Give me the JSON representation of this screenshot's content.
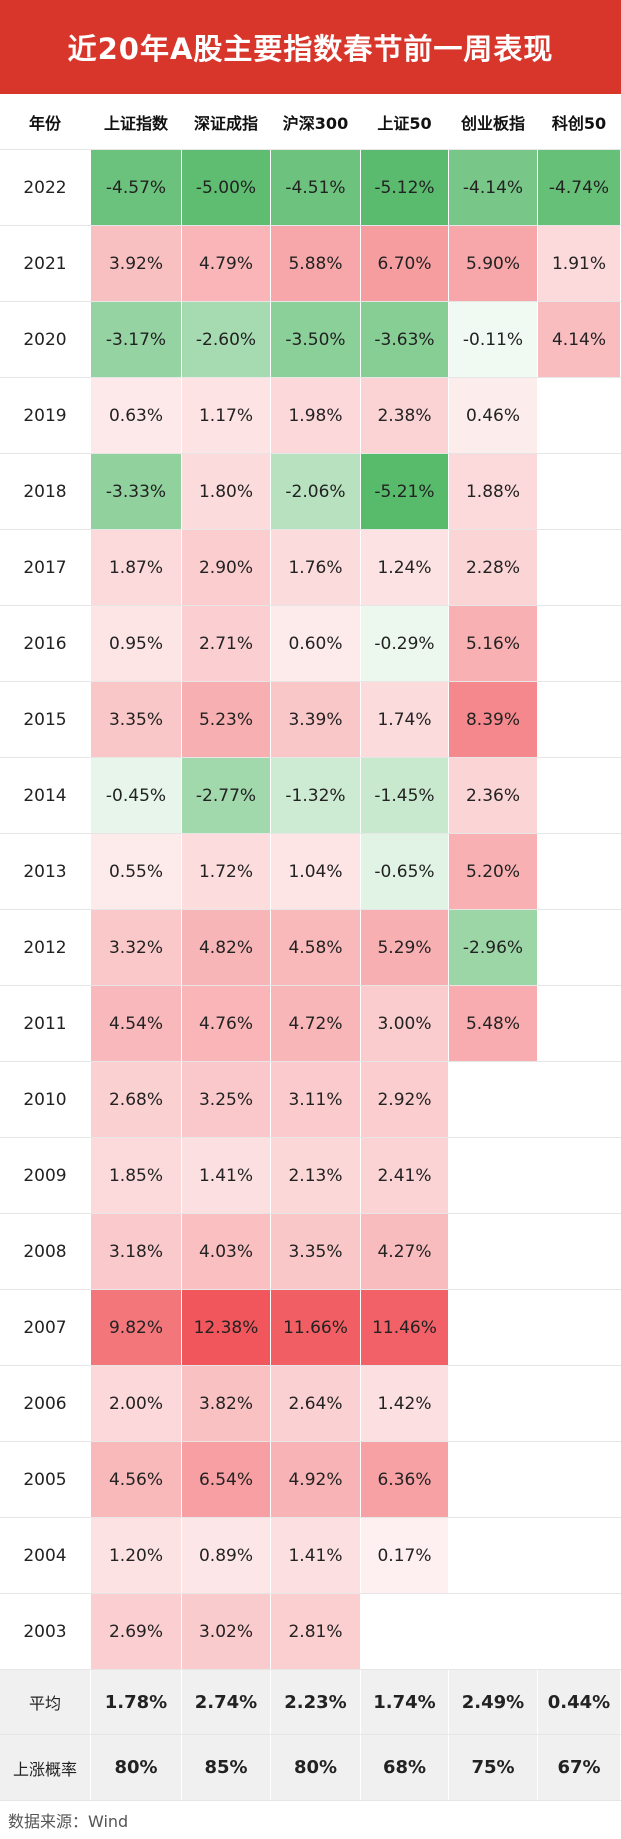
{
  "title": "近20年A股主要指数春节前一周表现",
  "columns": [
    "年份",
    "上证指数",
    "深证成指",
    "沪深300",
    "上证50",
    "创业板指",
    "科创50"
  ],
  "rows": [
    {
      "year": "2022",
      "values": [
        "-4.57%",
        "-5.00%",
        "-4.51%",
        "-5.12%",
        "-4.14%",
        "-4.74%"
      ]
    },
    {
      "year": "2021",
      "values": [
        "3.92%",
        "4.79%",
        "5.88%",
        "6.70%",
        "5.90%",
        "1.91%"
      ]
    },
    {
      "year": "2020",
      "values": [
        "-3.17%",
        "-2.60%",
        "-3.50%",
        "-3.63%",
        "-0.11%",
        "4.14%"
      ]
    },
    {
      "year": "2019",
      "values": [
        "0.63%",
        "1.17%",
        "1.98%",
        "2.38%",
        "0.46%",
        ""
      ]
    },
    {
      "year": "2018",
      "values": [
        "-3.33%",
        "1.80%",
        "-2.06%",
        "-5.21%",
        "1.88%",
        ""
      ]
    },
    {
      "year": "2017",
      "values": [
        "1.87%",
        "2.90%",
        "1.76%",
        "1.24%",
        "2.28%",
        ""
      ]
    },
    {
      "year": "2016",
      "values": [
        "0.95%",
        "2.71%",
        "0.60%",
        "-0.29%",
        "5.16%",
        ""
      ]
    },
    {
      "year": "2015",
      "values": [
        "3.35%",
        "5.23%",
        "3.39%",
        "1.74%",
        "8.39%",
        ""
      ]
    },
    {
      "year": "2014",
      "values": [
        "-0.45%",
        "-2.77%",
        "-1.32%",
        "-1.45%",
        "2.36%",
        ""
      ]
    },
    {
      "year": "2013",
      "values": [
        "0.55%",
        "1.72%",
        "1.04%",
        "-0.65%",
        "5.20%",
        ""
      ]
    },
    {
      "year": "2012",
      "values": [
        "3.32%",
        "4.82%",
        "4.58%",
        "5.29%",
        "-2.96%",
        ""
      ]
    },
    {
      "year": "2011",
      "values": [
        "4.54%",
        "4.76%",
        "4.72%",
        "3.00%",
        "5.48%",
        ""
      ]
    },
    {
      "year": "2010",
      "values": [
        "2.68%",
        "3.25%",
        "3.11%",
        "2.92%",
        "",
        ""
      ]
    },
    {
      "year": "2009",
      "values": [
        "1.85%",
        "1.41%",
        "2.13%",
        "2.41%",
        "",
        ""
      ]
    },
    {
      "year": "2008",
      "values": [
        "3.18%",
        "4.03%",
        "3.35%",
        "4.27%",
        "",
        ""
      ]
    },
    {
      "year": "2007",
      "values": [
        "9.82%",
        "12.38%",
        "11.66%",
        "11.46%",
        "",
        ""
      ]
    },
    {
      "year": "2006",
      "values": [
        "2.00%",
        "3.82%",
        "2.64%",
        "1.42%",
        "",
        ""
      ]
    },
    {
      "year": "2005",
      "values": [
        "4.56%",
        "6.54%",
        "4.92%",
        "6.36%",
        "",
        ""
      ]
    },
    {
      "year": "2004",
      "values": [
        "1.20%",
        "0.89%",
        "1.41%",
        "0.17%",
        "",
        ""
      ]
    },
    {
      "year": "2003",
      "values": [
        "2.69%",
        "3.02%",
        "2.81%",
        "",
        "",
        ""
      ]
    }
  ],
  "summary": [
    {
      "label": "平均",
      "values": [
        "1.78%",
        "2.74%",
        "2.23%",
        "1.74%",
        "2.49%",
        "0.44%"
      ]
    },
    {
      "label": "上涨概率",
      "values": [
        "80%",
        "85%",
        "80%",
        "68%",
        "75%",
        "67%"
      ]
    }
  ],
  "colors": {
    "title_bg": "#d9362b",
    "positive": "#f0545a",
    "negative": "#4fb865"
  },
  "watermark": "Wind",
  "footer": "数据来源：Wind"
}
